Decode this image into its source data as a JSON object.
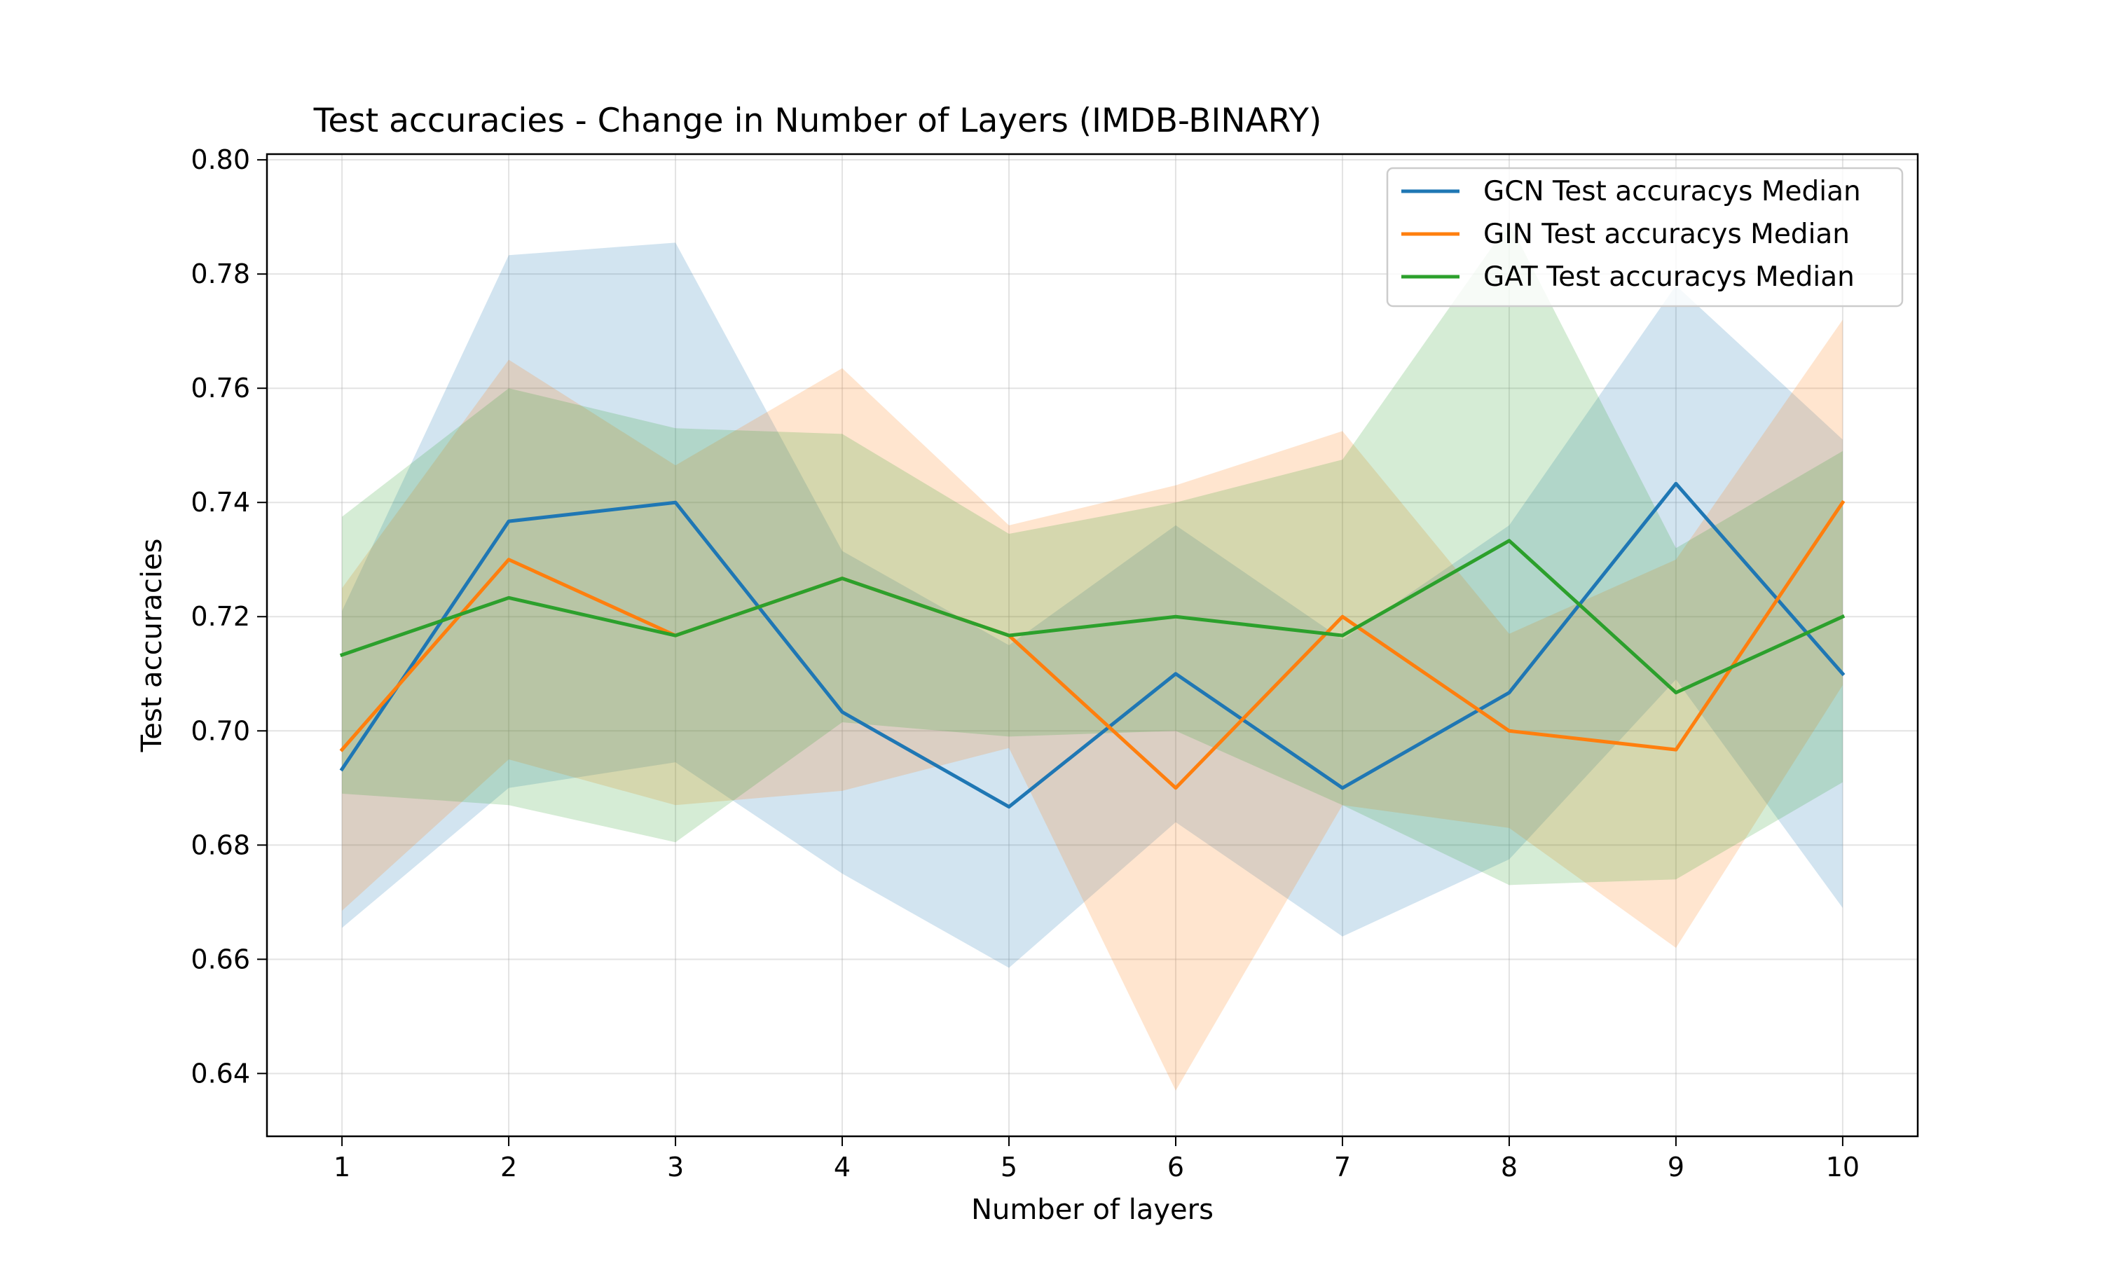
{
  "chart_data": {
    "type": "line",
    "title": "Test accuracies - Change in Number of Layers (IMDB-BINARY)",
    "xlabel": "Number of layers",
    "ylabel": "Test accuracies",
    "x": [
      1,
      2,
      3,
      4,
      5,
      6,
      7,
      8,
      9,
      10
    ],
    "xlim": [
      0.55,
      10.45
    ],
    "ylim": [
      0.629,
      0.801
    ],
    "xticks": [
      "1",
      "2",
      "3",
      "4",
      "5",
      "6",
      "7",
      "8",
      "9",
      "10"
    ],
    "yticks": [
      "0.64",
      "0.66",
      "0.68",
      "0.70",
      "0.72",
      "0.74",
      "0.76",
      "0.78",
      "0.80"
    ],
    "grid": true,
    "legend_position": "upper right",
    "series": [
      {
        "name": "GCN Test accuracys Median",
        "color": "#1f77b4",
        "values": [
          0.6933,
          0.7367,
          0.74,
          0.7033,
          0.6867,
          0.71,
          0.69,
          0.7067,
          0.7433,
          0.71
        ],
        "band_upper": [
          0.721,
          0.7833,
          0.7855,
          0.7315,
          0.715,
          0.736,
          0.716,
          0.736,
          0.778,
          0.751
        ],
        "band_lower": [
          0.6655,
          0.69,
          0.6945,
          0.675,
          0.6585,
          0.684,
          0.664,
          0.6775,
          0.709,
          0.669
        ]
      },
      {
        "name": "GIN Test accuracys Median",
        "color": "#ff7f0e",
        "values": [
          0.6967,
          0.73,
          0.7167,
          0.7267,
          0.7167,
          0.69,
          0.72,
          0.7,
          0.6967,
          0.74
        ],
        "band_upper": [
          0.725,
          0.765,
          0.7465,
          0.7635,
          0.736,
          0.743,
          0.7525,
          0.717,
          0.73,
          0.772
        ],
        "band_lower": [
          0.6685,
          0.695,
          0.687,
          0.6895,
          0.697,
          0.637,
          0.687,
          0.683,
          0.662,
          0.708
        ]
      },
      {
        "name": "GAT Test accuracys Median",
        "color": "#2ca02c",
        "values": [
          0.7133,
          0.7233,
          0.7167,
          0.7267,
          0.7167,
          0.72,
          0.7167,
          0.7333,
          0.7067,
          0.72
        ],
        "band_upper": [
          0.7375,
          0.76,
          0.753,
          0.752,
          0.7345,
          0.74,
          0.7475,
          0.789,
          0.732,
          0.749
        ],
        "band_lower": [
          0.689,
          0.687,
          0.6805,
          0.7015,
          0.699,
          0.7,
          0.687,
          0.673,
          0.674,
          0.691
        ]
      }
    ]
  }
}
